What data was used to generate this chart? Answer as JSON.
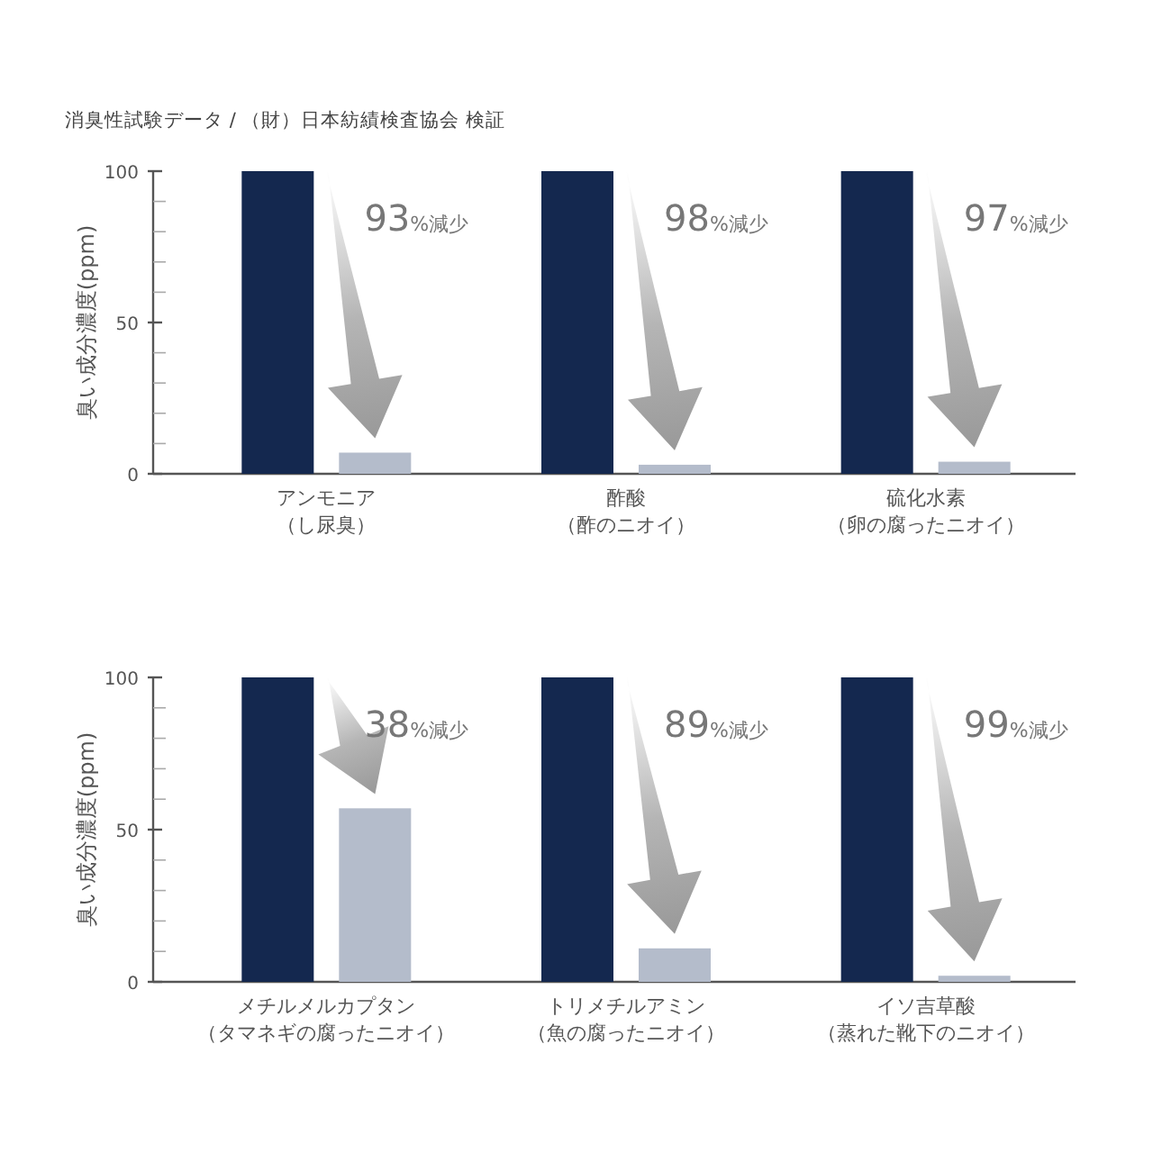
{
  "chart_data": [
    {
      "type": "bar",
      "title": "消臭性試験データ / （財）日本紡績検査協会 検証",
      "ylabel": "臭い成分濃度(ppm)",
      "categories": [
        "アンモニア（し尿臭）",
        "酢酸（酢のニオイ）",
        "硫化水素（卵の腐ったニオイ）"
      ],
      "series": [
        {
          "color": "#14284f",
          "values": [
            100,
            100,
            100
          ]
        },
        {
          "color": "#b4bccb",
          "values": [
            7,
            3,
            4
          ]
        }
      ],
      "ylim": [
        0,
        100
      ],
      "yticks": [
        0,
        {
          "value": 10,
          "label": null
        },
        {
          "value": 20,
          "label": null
        },
        {
          "value": 30,
          "label": null
        },
        {
          "value": 40,
          "label": null
        },
        50,
        {
          "value": 60,
          "label": null
        },
        {
          "value": 70,
          "label": null
        },
        {
          "value": 80,
          "label": null
        },
        {
          "value": 90,
          "label": null
        },
        100
      ],
      "annotations": [
        "93%減少",
        "98%減少",
        "97%減少"
      ]
    },
    {
      "type": "bar",
      "ylabel": "臭い成分濃度(ppm)",
      "categories": [
        "メチルメルカプタン（タマネギの腐ったニオイ）",
        "トリメチルアミン（魚の腐ったニオイ）",
        "イソ吉草酸（蒸れた靴下のニオイ）"
      ],
      "series": [
        {
          "color": "#14284f",
          "values": [
            100,
            100,
            100
          ]
        },
        {
          "color": "#b4bccb",
          "values": [
            57,
            11,
            2
          ]
        }
      ],
      "ylim": [
        0,
        100
      ],
      "yticks": [
        0,
        {
          "value": 10,
          "label": null
        },
        {
          "value": 20,
          "label": null
        },
        {
          "value": 30,
          "label": null
        },
        {
          "value": 40,
          "label": null
        },
        50,
        {
          "value": 60,
          "label": null
        },
        {
          "value": 70,
          "label": null
        },
        {
          "value": 80,
          "label": null
        },
        {
          "value": 90,
          "label": null
        },
        100
      ],
      "annotations": [
        "38%減少",
        "89%減少",
        "99%減少"
      ]
    }
  ]
}
